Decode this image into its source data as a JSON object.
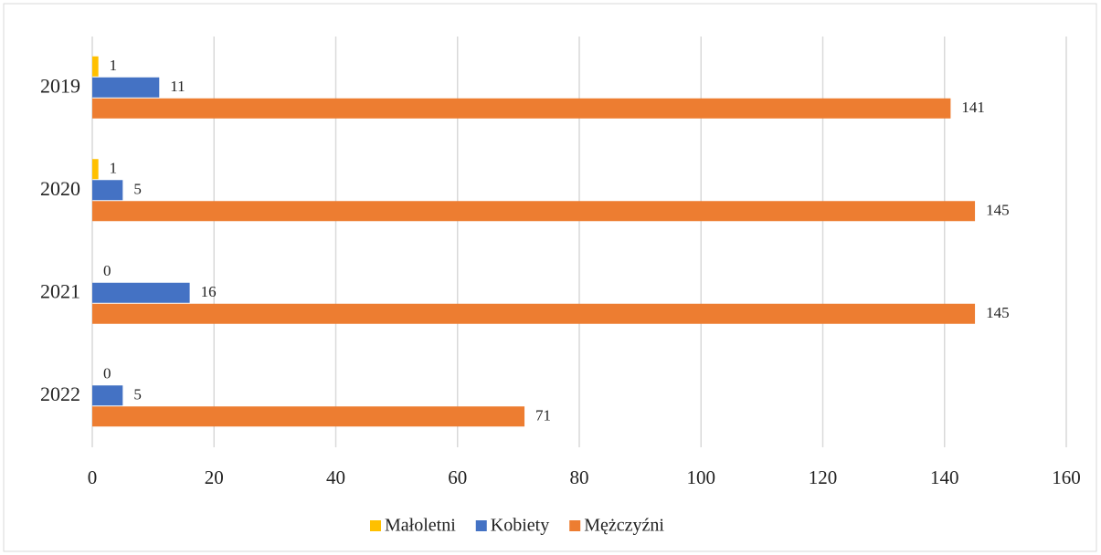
{
  "chart_data": {
    "type": "bar",
    "orientation": "horizontal",
    "categories": [
      "2019",
      "2020",
      "2021",
      "2022"
    ],
    "series": [
      {
        "name": "Małoletni",
        "color": "#ffc000",
        "values": [
          1,
          1,
          0,
          0
        ]
      },
      {
        "name": "Kobiety",
        "color": "#4472c4",
        "values": [
          11,
          5,
          16,
          5
        ]
      },
      {
        "name": "Mężczyźni",
        "color": "#ed7d31",
        "values": [
          141,
          145,
          145,
          71
        ]
      }
    ],
    "xlim": [
      0,
      160
    ],
    "xticks": [
      0,
      20,
      40,
      60,
      80,
      100,
      120,
      140,
      160
    ],
    "grid": true,
    "legend": "bottom"
  }
}
